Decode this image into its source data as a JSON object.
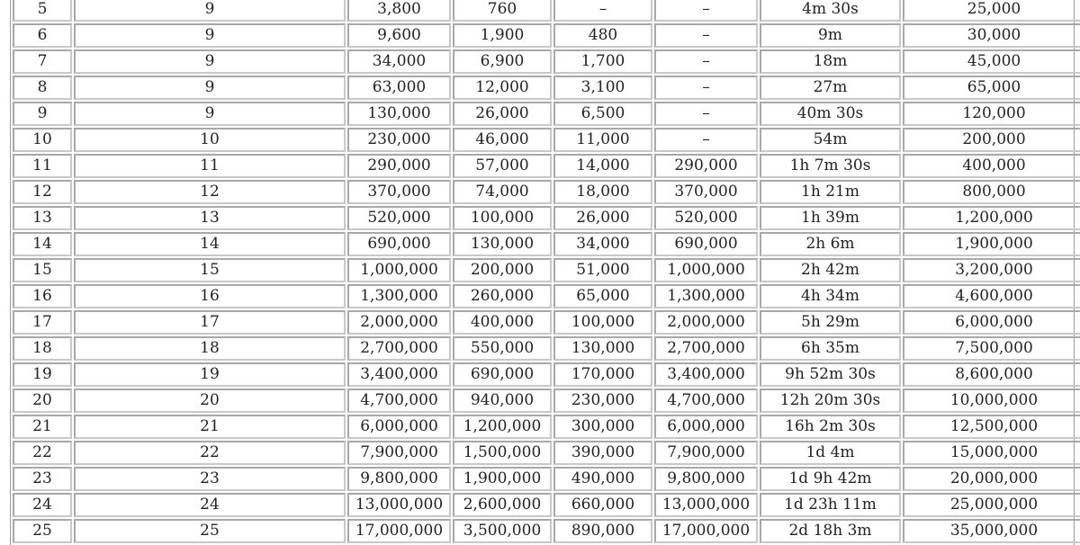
{
  "table": {
    "rows": [
      [
        "5",
        "9",
        "3,800",
        "760",
        "–",
        "–",
        "4m 30s",
        "25,000"
      ],
      [
        "6",
        "9",
        "9,600",
        "1,900",
        "480",
        "–",
        "9m",
        "30,000"
      ],
      [
        "7",
        "9",
        "34,000",
        "6,900",
        "1,700",
        "–",
        "18m",
        "45,000"
      ],
      [
        "8",
        "9",
        "63,000",
        "12,000",
        "3,100",
        "–",
        "27m",
        "65,000"
      ],
      [
        "9",
        "9",
        "130,000",
        "26,000",
        "6,500",
        "–",
        "40m 30s",
        "120,000"
      ],
      [
        "10",
        "10",
        "230,000",
        "46,000",
        "11,000",
        "–",
        "54m",
        "200,000"
      ],
      [
        "11",
        "11",
        "290,000",
        "57,000",
        "14,000",
        "290,000",
        "1h 7m 30s",
        "400,000"
      ],
      [
        "12",
        "12",
        "370,000",
        "74,000",
        "18,000",
        "370,000",
        "1h 21m",
        "800,000"
      ],
      [
        "13",
        "13",
        "520,000",
        "100,000",
        "26,000",
        "520,000",
        "1h 39m",
        "1,200,000"
      ],
      [
        "14",
        "14",
        "690,000",
        "130,000",
        "34,000",
        "690,000",
        "2h 6m",
        "1,900,000"
      ],
      [
        "15",
        "15",
        "1,000,000",
        "200,000",
        "51,000",
        "1,000,000",
        "2h 42m",
        "3,200,000"
      ],
      [
        "16",
        "16",
        "1,300,000",
        "260,000",
        "65,000",
        "1,300,000",
        "4h 34m",
        "4,600,000"
      ],
      [
        "17",
        "17",
        "2,000,000",
        "400,000",
        "100,000",
        "2,000,000",
        "5h 29m",
        "6,000,000"
      ],
      [
        "18",
        "18",
        "2,700,000",
        "550,000",
        "130,000",
        "2,700,000",
        "6h 35m",
        "7,500,000"
      ],
      [
        "19",
        "19",
        "3,400,000",
        "690,000",
        "170,000",
        "3,400,000",
        "9h 52m 30s",
        "8,600,000"
      ],
      [
        "20",
        "20",
        "4,700,000",
        "940,000",
        "230,000",
        "4,700,000",
        "12h 20m 30s",
        "10,000,000"
      ],
      [
        "21",
        "21",
        "6,000,000",
        "1,200,000",
        "300,000",
        "6,000,000",
        "16h 2m 30s",
        "12,500,000"
      ],
      [
        "22",
        "22",
        "7,900,000",
        "1,500,000",
        "390,000",
        "7,900,000",
        "1d 4m",
        "15,000,000"
      ],
      [
        "23",
        "23",
        "9,800,000",
        "1,900,000",
        "490,000",
        "9,800,000",
        "1d 9h 42m",
        "20,000,000"
      ],
      [
        "24",
        "24",
        "13,000,000",
        "2,600,000",
        "660,000",
        "13,000,000",
        "1d 23h 11m",
        "25,000,000"
      ],
      [
        "25",
        "25",
        "17,000,000",
        "3,500,000",
        "890,000",
        "17,000,000",
        "2d 18h 3m",
        "35,000,000"
      ]
    ]
  }
}
